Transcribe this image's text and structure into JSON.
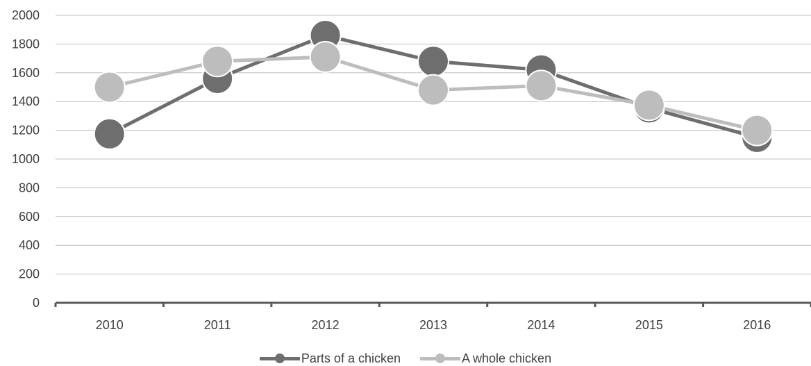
{
  "chart_data": {
    "type": "line",
    "categories": [
      "2010",
      "2011",
      "2012",
      "2013",
      "2014",
      "2015",
      "2016"
    ],
    "ylim": [
      0,
      2000
    ],
    "yticks": [
      0,
      200,
      400,
      600,
      800,
      1000,
      1200,
      1400,
      1600,
      1800,
      2000
    ],
    "ytick_labels": [
      "0",
      "200",
      "400",
      "600",
      "800",
      "1000",
      "1200",
      "1400",
      "1600",
      "1800",
      "2000"
    ],
    "grid": true,
    "legend_position": "bottom",
    "series": [
      {
        "name": "Parts of a chicken",
        "color": "#6e6e6e",
        "values": [
          1175,
          1560,
          1860,
          1680,
          1620,
          1355,
          1150
        ]
      },
      {
        "name": "A whole chicken",
        "color": "#bdbdbd",
        "values": [
          1500,
          1680,
          1710,
          1480,
          1510,
          1375,
          1200
        ]
      }
    ]
  }
}
